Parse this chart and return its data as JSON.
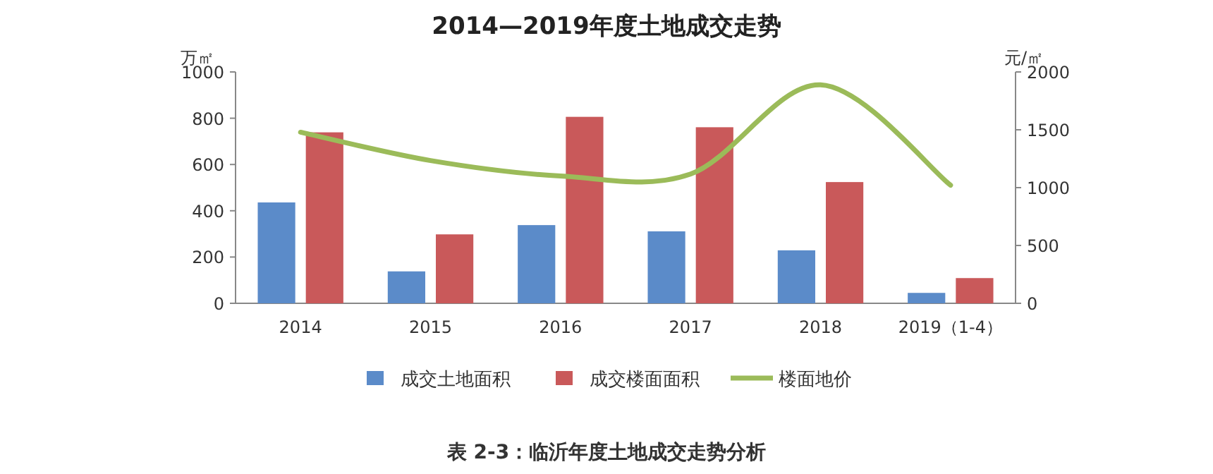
{
  "chart_data": {
    "type": "bar",
    "title": "2014—2019年度土地成交走势",
    "categories": [
      "2014",
      "2015",
      "2016",
      "2017",
      "2018",
      "2019（1-4）"
    ],
    "series": [
      {
        "name": "成交土地面积",
        "color": "#5b8bc9",
        "values": [
          436,
          138,
          338,
          311,
          229,
          45
        ]
      },
      {
        "name": "成交楼面面积",
        "color": "#c9595a",
        "values": [
          739,
          298,
          806,
          761,
          524,
          109
        ]
      },
      {
        "name": "楼面地价",
        "type": "line",
        "axis": "y2",
        "color": "#9bbb59",
        "values": [
          1479,
          1234,
          1101,
          1117,
          1888,
          1021
        ]
      }
    ],
    "ylabel": "万㎡",
    "y2label": "元/㎡",
    "ylim": [
      0,
      1000
    ],
    "yticks": [
      0,
      200,
      400,
      600,
      800,
      1000
    ],
    "y2lim": [
      0,
      2000
    ],
    "y2ticks": [
      0,
      500,
      1000,
      1500,
      2000
    ],
    "legend": "bottom",
    "annotations": [
      "表 2-3：临沂年度土地成交走势分析"
    ]
  }
}
